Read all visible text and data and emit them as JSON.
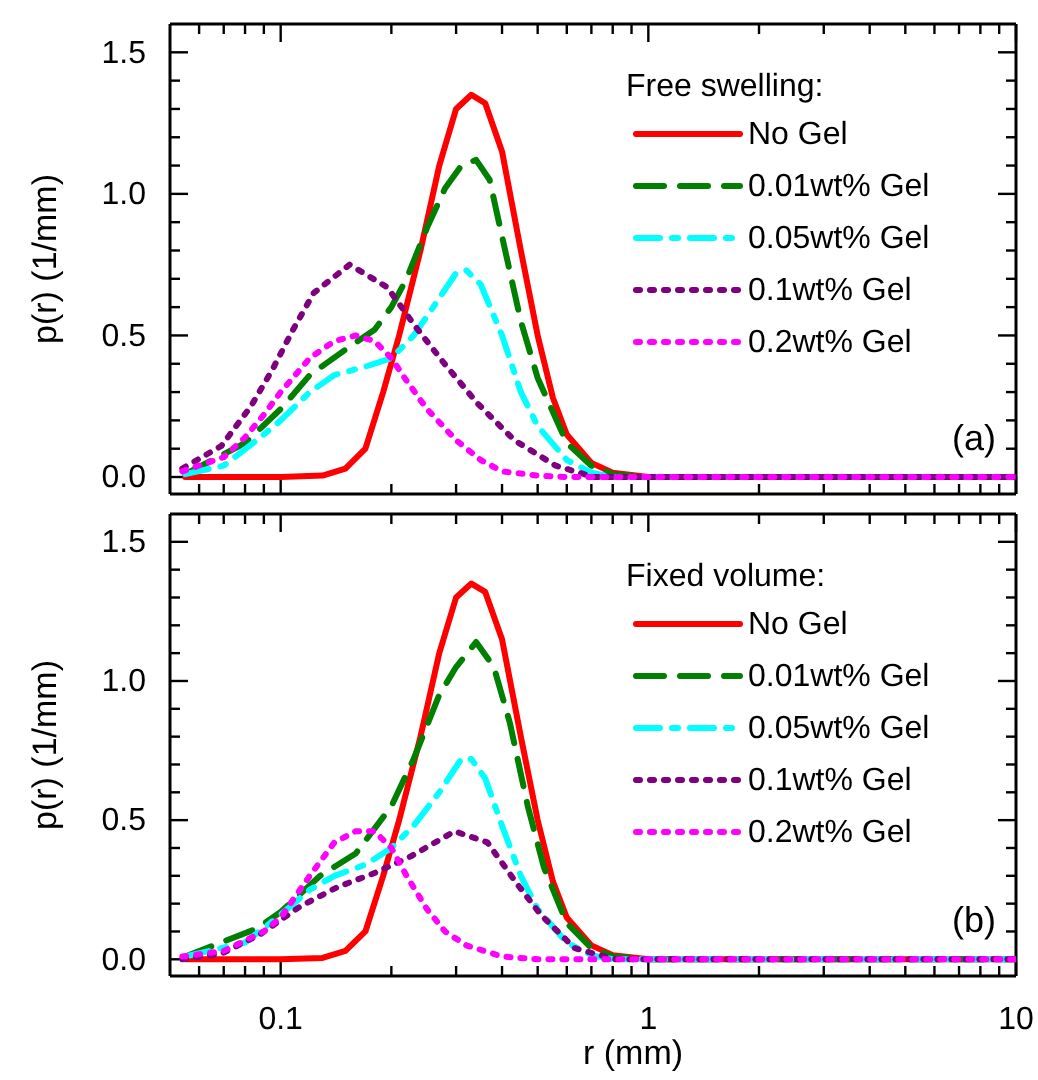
{
  "chart_data": [
    {
      "type": "line",
      "ylabel": "p(r)  (1/mm)",
      "legend_title": "Free swelling:",
      "legend": "top right",
      "annotations": [
        "(a)"
      ],
      "tick_labels": "y",
      "log": "x",
      "xlim": [
        0.05,
        10
      ],
      "ylim": [
        -0.06,
        1.6
      ],
      "xticks": [
        {
          "value": 0.06,
          "label": null
        },
        {
          "value": 0.07,
          "label": null
        },
        {
          "value": 0.08,
          "label": null
        },
        {
          "value": 0.09,
          "label": null
        },
        {
          "value": 0.1,
          "label": null
        },
        {
          "value": 0.2,
          "label": null
        },
        {
          "value": 0.3,
          "label": null
        },
        {
          "value": 0.4,
          "label": null
        },
        {
          "value": 0.5,
          "label": null
        },
        {
          "value": 0.6,
          "label": null
        },
        {
          "value": 0.7,
          "label": null
        },
        {
          "value": 0.8,
          "label": null
        },
        {
          "value": 0.9,
          "label": null
        },
        {
          "value": 1,
          "label": null
        },
        {
          "value": 2,
          "label": null
        },
        {
          "value": 3,
          "label": null
        },
        {
          "value": 4,
          "label": null
        },
        {
          "value": 5,
          "label": null
        },
        {
          "value": 6,
          "label": null
        },
        {
          "value": 7,
          "label": null
        },
        {
          "value": 8,
          "label": null
        },
        {
          "value": 9,
          "label": null
        },
        {
          "value": 10,
          "label": null
        }
      ],
      "yticks": [
        {
          "value": 0,
          "label": "0.0"
        },
        {
          "value": 0.1,
          "label": null
        },
        {
          "value": 0.2,
          "label": null
        },
        {
          "value": 0.3,
          "label": null
        },
        {
          "value": 0.4,
          "label": null
        },
        {
          "value": 0.5,
          "label": "0.5"
        },
        {
          "value": 0.6,
          "label": null
        },
        {
          "value": 0.7,
          "label": null
        },
        {
          "value": 0.8,
          "label": null
        },
        {
          "value": 0.9,
          "label": null
        },
        {
          "value": 1,
          "label": "1.0"
        },
        {
          "value": 1.1,
          "label": null
        },
        {
          "value": 1.2,
          "label": null
        },
        {
          "value": 1.3,
          "label": null
        },
        {
          "value": 1.4,
          "label": null
        },
        {
          "value": 1.5,
          "label": "1.5"
        }
      ],
      "series": [
        {
          "name": "No Gel",
          "color": "#ff0000",
          "line_style": "solid",
          "x": [
            0.055,
            0.1,
            0.13,
            0.15,
            0.17,
            0.19,
            0.21,
            0.24,
            0.27,
            0.3,
            0.33,
            0.36,
            0.4,
            0.45,
            0.5,
            0.55,
            0.6,
            0.7,
            0.8,
            1,
            10
          ],
          "values": [
            0,
            0,
            0.005,
            0.03,
            0.1,
            0.3,
            0.5,
            0.8,
            1.1,
            1.3,
            1.35,
            1.32,
            1.15,
            0.8,
            0.5,
            0.28,
            0.15,
            0.05,
            0.015,
            0,
            0
          ]
        },
        {
          "name": "0.01wt% Gel",
          "color": "#007f00",
          "line_style": "dashed",
          "x": [
            0.055,
            0.08,
            0.1,
            0.12,
            0.15,
            0.18,
            0.2,
            0.22,
            0.25,
            0.28,
            0.31,
            0.34,
            0.37,
            0.4,
            0.45,
            0.5,
            0.6,
            0.7,
            0.8,
            1,
            10
          ],
          "values": [
            0.01,
            0.12,
            0.24,
            0.36,
            0.45,
            0.52,
            0.6,
            0.7,
            0.88,
            1.02,
            1.1,
            1.12,
            1.05,
            0.85,
            0.55,
            0.35,
            0.12,
            0.04,
            0.01,
            0,
            0
          ]
        },
        {
          "name": "0.05wt% Gel",
          "color": "#00ffff",
          "line_style": "dashdot",
          "x": [
            0.055,
            0.07,
            0.09,
            0.1,
            0.12,
            0.14,
            0.17,
            0.2,
            0.23,
            0.26,
            0.3,
            0.32,
            0.35,
            0.4,
            0.45,
            0.5,
            0.6,
            0.7,
            0.8,
            10
          ],
          "values": [
            0.01,
            0.04,
            0.15,
            0.2,
            0.3,
            0.36,
            0.39,
            0.42,
            0.5,
            0.6,
            0.72,
            0.73,
            0.68,
            0.5,
            0.3,
            0.18,
            0.06,
            0.015,
            0,
            0
          ]
        },
        {
          "name": "0.1wt% Gel",
          "color": "#7f007f",
          "line_style": "dotted",
          "x": [
            0.054,
            0.069,
            0.083,
            0.095,
            0.108,
            0.123,
            0.154,
            0.195,
            0.233,
            0.279,
            0.343,
            0.432,
            0.56,
            0.71,
            10
          ],
          "values": [
            0.03,
            0.11,
            0.25,
            0.38,
            0.52,
            0.65,
            0.75,
            0.67,
            0.53,
            0.4,
            0.26,
            0.13,
            0.04,
            0,
            0
          ]
        },
        {
          "name": "0.2wt% Gel",
          "color": "#ff00ff",
          "line_style": "dotted",
          "x": [
            0.054,
            0.07,
            0.08,
            0.09,
            0.1,
            0.12,
            0.14,
            0.16,
            0.18,
            0.2,
            0.22,
            0.25,
            0.3,
            0.35,
            0.4,
            0.5,
            0.6,
            10
          ],
          "values": [
            0.02,
            0.07,
            0.14,
            0.22,
            0.3,
            0.42,
            0.48,
            0.5,
            0.48,
            0.42,
            0.34,
            0.24,
            0.13,
            0.06,
            0.02,
            0.005,
            0,
            0
          ]
        }
      ]
    },
    {
      "type": "line",
      "xlabel": "r  (mm)",
      "ylabel": "p(r)  (1/mm)",
      "legend_title": "Fixed volume:",
      "legend": "top right",
      "annotations": [
        "(b)"
      ],
      "log": "x",
      "xlim": [
        0.05,
        10
      ],
      "ylim": [
        -0.06,
        1.6
      ],
      "xticks": [
        {
          "value": 0.06,
          "label": null
        },
        {
          "value": 0.07,
          "label": null
        },
        {
          "value": 0.08,
          "label": null
        },
        {
          "value": 0.09,
          "label": null
        },
        {
          "value": 0.1,
          "label": "0.1"
        },
        {
          "value": 0.2,
          "label": null
        },
        {
          "value": 0.3,
          "label": null
        },
        {
          "value": 0.4,
          "label": null
        },
        {
          "value": 0.5,
          "label": null
        },
        {
          "value": 0.6,
          "label": null
        },
        {
          "value": 0.7,
          "label": null
        },
        {
          "value": 0.8,
          "label": null
        },
        {
          "value": 0.9,
          "label": null
        },
        {
          "value": 1,
          "label": "1"
        },
        {
          "value": 2,
          "label": null
        },
        {
          "value": 3,
          "label": null
        },
        {
          "value": 4,
          "label": null
        },
        {
          "value": 5,
          "label": null
        },
        {
          "value": 6,
          "label": null
        },
        {
          "value": 7,
          "label": null
        },
        {
          "value": 8,
          "label": null
        },
        {
          "value": 9,
          "label": null
        },
        {
          "value": 10,
          "label": "10"
        }
      ],
      "yticks": [
        {
          "value": 0,
          "label": "0.0"
        },
        {
          "value": 0.1,
          "label": null
        },
        {
          "value": 0.2,
          "label": null
        },
        {
          "value": 0.3,
          "label": null
        },
        {
          "value": 0.4,
          "label": null
        },
        {
          "value": 0.5,
          "label": "0.5"
        },
        {
          "value": 0.6,
          "label": null
        },
        {
          "value": 0.7,
          "label": null
        },
        {
          "value": 0.8,
          "label": null
        },
        {
          "value": 0.9,
          "label": null
        },
        {
          "value": 1,
          "label": "1.0"
        },
        {
          "value": 1.1,
          "label": null
        },
        {
          "value": 1.2,
          "label": null
        },
        {
          "value": 1.3,
          "label": null
        },
        {
          "value": 1.4,
          "label": null
        },
        {
          "value": 1.5,
          "label": "1.5"
        }
      ],
      "series": [
        {
          "name": "No Gel",
          "color": "#ff0000",
          "line_style": "solid",
          "x": [
            0.055,
            0.1,
            0.13,
            0.15,
            0.17,
            0.19,
            0.21,
            0.24,
            0.27,
            0.3,
            0.33,
            0.36,
            0.4,
            0.45,
            0.5,
            0.55,
            0.6,
            0.7,
            0.8,
            1,
            10
          ],
          "values": [
            0,
            0,
            0.005,
            0.03,
            0.1,
            0.3,
            0.5,
            0.8,
            1.1,
            1.3,
            1.35,
            1.32,
            1.15,
            0.8,
            0.5,
            0.28,
            0.15,
            0.05,
            0.015,
            0,
            0
          ]
        },
        {
          "name": "0.01wt% Gel",
          "color": "#007f00",
          "line_style": "dashed",
          "x": [
            0.055,
            0.086,
            0.1,
            0.128,
            0.16,
            0.2,
            0.23,
            0.27,
            0.3,
            0.34,
            0.38,
            0.42,
            0.47,
            0.52,
            0.6,
            0.7,
            0.8,
            1,
            10
          ],
          "values": [
            0.01,
            0.11,
            0.17,
            0.3,
            0.38,
            0.55,
            0.72,
            0.95,
            1.05,
            1.14,
            1.05,
            0.85,
            0.55,
            0.33,
            0.13,
            0.04,
            0.01,
            0,
            0
          ]
        },
        {
          "name": "0.05wt% Gel",
          "color": "#00ffff",
          "line_style": "dashdot",
          "x": [
            0.055,
            0.08,
            0.1,
            0.12,
            0.14,
            0.17,
            0.2,
            0.23,
            0.27,
            0.31,
            0.33,
            0.36,
            0.4,
            0.45,
            0.5,
            0.6,
            0.7,
            0.8,
            10
          ],
          "values": [
            0.01,
            0.06,
            0.16,
            0.25,
            0.3,
            0.34,
            0.4,
            0.48,
            0.6,
            0.72,
            0.72,
            0.65,
            0.48,
            0.3,
            0.18,
            0.06,
            0.015,
            0,
            0
          ]
        },
        {
          "name": "0.1wt% Gel",
          "color": "#7f007f",
          "line_style": "dotted",
          "x": [
            0.054,
            0.069,
            0.088,
            0.113,
            0.143,
            0.18,
            0.226,
            0.297,
            0.365,
            0.44,
            0.51,
            0.63,
            0.81,
            10
          ],
          "values": [
            0,
            0.02,
            0.09,
            0.19,
            0.26,
            0.31,
            0.37,
            0.46,
            0.42,
            0.27,
            0.16,
            0.04,
            0,
            0
          ]
        },
        {
          "name": "0.2wt% Gel",
          "color": "#ff00ff",
          "line_style": "dotted",
          "x": [
            0.054,
            0.07,
            0.09,
            0.1,
            0.12,
            0.14,
            0.16,
            0.18,
            0.2,
            0.22,
            0.25,
            0.28,
            0.32,
            0.4,
            0.5,
            10
          ],
          "values": [
            0.01,
            0.03,
            0.1,
            0.15,
            0.3,
            0.42,
            0.46,
            0.46,
            0.4,
            0.3,
            0.18,
            0.1,
            0.05,
            0.01,
            0,
            0
          ]
        }
      ]
    }
  ]
}
